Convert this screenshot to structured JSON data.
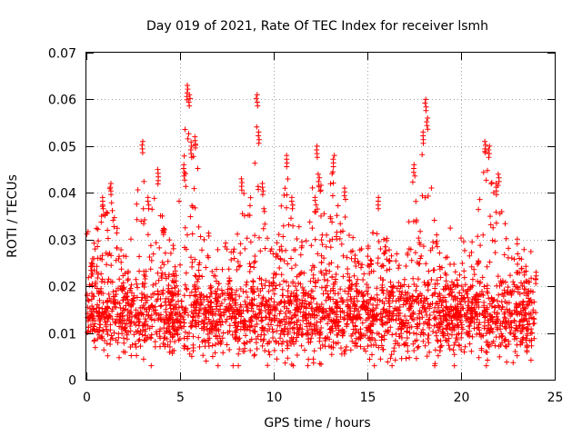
{
  "chart_data": {
    "type": "scatter",
    "title": "Day 019 of 2021, Rate Of TEC Index for receiver lsmh",
    "xlabel": "GPS time / hours",
    "ylabel": "ROTI / TECUs",
    "xlim": [
      0,
      25
    ],
    "ylim": [
      0,
      0.07
    ],
    "x_ticks": [
      0,
      5,
      10,
      15,
      20,
      25
    ],
    "x_tick_labels": [
      "0",
      "5",
      "10",
      "15",
      "20",
      "25"
    ],
    "y_ticks": [
      0,
      0.01,
      0.02,
      0.03,
      0.04,
      0.05,
      0.06,
      0.07
    ],
    "y_tick_labels": [
      "0",
      "0.01",
      "0.02",
      "0.03",
      "0.04",
      "0.05",
      "0.06",
      "0.07"
    ],
    "grid": true,
    "marker": "+",
    "marker_color": "#ff0000",
    "data_extent_x": [
      0,
      24
    ],
    "series": [
      {
        "name": "ROTI",
        "color": "#ff0000",
        "description_points": [
          {
            "x": 0.3,
            "y": 0.025
          },
          {
            "x": 0.9,
            "y": 0.039
          },
          {
            "x": 1.3,
            "y": 0.042
          },
          {
            "x": 3.0,
            "y": 0.051
          },
          {
            "x": 3.3,
            "y": 0.039
          },
          {
            "x": 3.8,
            "y": 0.045
          },
          {
            "x": 5.2,
            "y": 0.046
          },
          {
            "x": 5.4,
            "y": 0.063
          },
          {
            "x": 5.5,
            "y": 0.061
          },
          {
            "x": 5.6,
            "y": 0.05
          },
          {
            "x": 5.8,
            "y": 0.052
          },
          {
            "x": 8.3,
            "y": 0.043
          },
          {
            "x": 9.1,
            "y": 0.061
          },
          {
            "x": 9.2,
            "y": 0.053
          },
          {
            "x": 9.4,
            "y": 0.042
          },
          {
            "x": 10.7,
            "y": 0.048
          },
          {
            "x": 11.0,
            "y": 0.039
          },
          {
            "x": 12.3,
            "y": 0.05
          },
          {
            "x": 12.4,
            "y": 0.044
          },
          {
            "x": 13.2,
            "y": 0.048
          },
          {
            "x": 13.8,
            "y": 0.041
          },
          {
            "x": 15.6,
            "y": 0.039
          },
          {
            "x": 17.5,
            "y": 0.046
          },
          {
            "x": 18.1,
            "y": 0.06
          },
          {
            "x": 18.2,
            "y": 0.056
          },
          {
            "x": 18.0,
            "y": 0.053
          },
          {
            "x": 21.3,
            "y": 0.051
          },
          {
            "x": 21.5,
            "y": 0.05
          },
          {
            "x": 21.9,
            "y": 0.042
          },
          {
            "x": 22.0,
            "y": 0.044
          },
          {
            "x": 24.0,
            "y": 0.023
          }
        ],
        "typical_range": [
          0.005,
          0.03
        ],
        "minimum": 0.003,
        "maximum": 0.063
      }
    ]
  }
}
